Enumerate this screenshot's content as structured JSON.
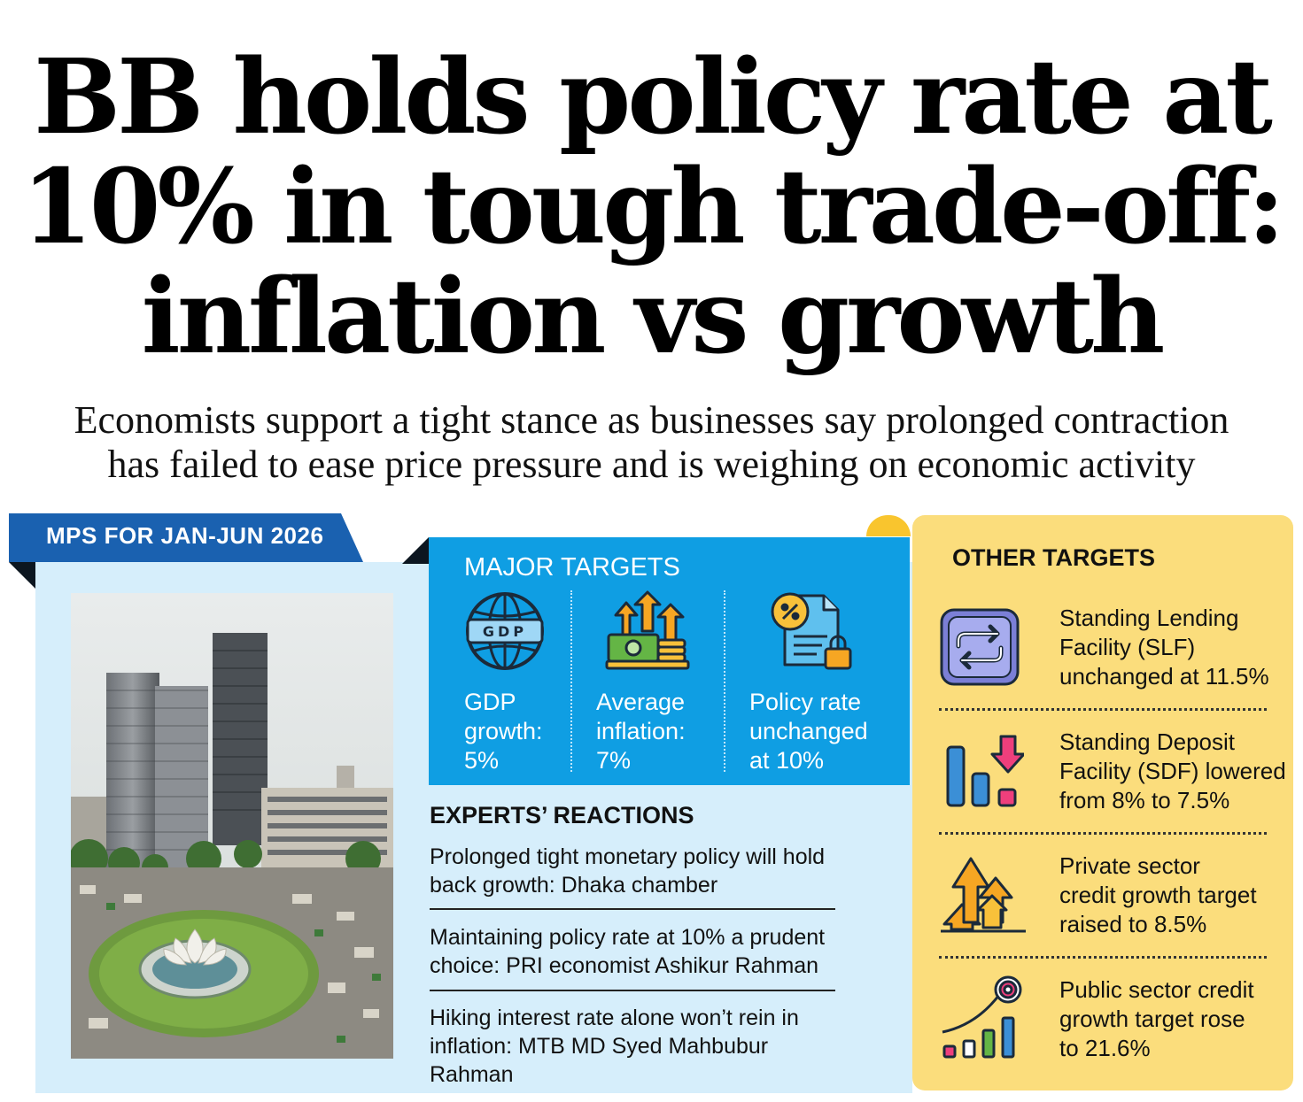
{
  "headline": {
    "line1": "BB holds policy rate at",
    "line2": "10% in tough trade-off:",
    "line3": "inflation vs growth"
  },
  "subhead": {
    "line1": "Economists support a tight stance as businesses say prolonged contraction",
    "line2": "has failed to ease price pressure and is weighing on economic activity"
  },
  "tab_label": "MPS FOR JAN-JUN 2026",
  "major_targets": {
    "title": "MAJOR TARGETS",
    "gdp_icon_text": "GDP",
    "items": [
      {
        "line1": "GDP",
        "line2": "growth:",
        "line3": "5%"
      },
      {
        "line1": "Average",
        "line2": "inflation:",
        "line3": "7%"
      },
      {
        "line1": "Policy rate",
        "line2": "unchanged",
        "line3": "at 10%"
      }
    ]
  },
  "experts": {
    "title": "EXPERTS’ REACTIONS",
    "items": [
      {
        "line1": "Prolonged tight monetary policy will hold",
        "line2": "back growth: Dhaka chamber"
      },
      {
        "line1": "Maintaining policy rate at 10% a prudent",
        "line2": "choice: PRI economist Ashikur Rahman"
      },
      {
        "line1": "Hiking interest rate alone won’t rein in",
        "line2": "inflation: MTB MD Syed Mahbubur Rahman"
      }
    ]
  },
  "other_targets": {
    "title": "OTHER TARGETS",
    "items": [
      {
        "line1": "Standing Lending",
        "line2": "Facility (SLF)",
        "line3": "unchanged at 11.5%"
      },
      {
        "line1": "Standing Deposit",
        "line2": "Facility (SDF) lowered",
        "line3": "from 8% to 7.5%"
      },
      {
        "line1": "Private sector",
        "line2": "credit growth target",
        "line3": "raised to 8.5%"
      },
      {
        "line1": "Public sector credit",
        "line2": "growth target rose",
        "line3": "to 21.6%"
      }
    ]
  },
  "colors": {
    "tab_blue": "#1a61b0",
    "major_blue": "#0f9ee3",
    "panel_light_blue": "#d6eefb",
    "other_yellow": "#fbdd7c"
  }
}
